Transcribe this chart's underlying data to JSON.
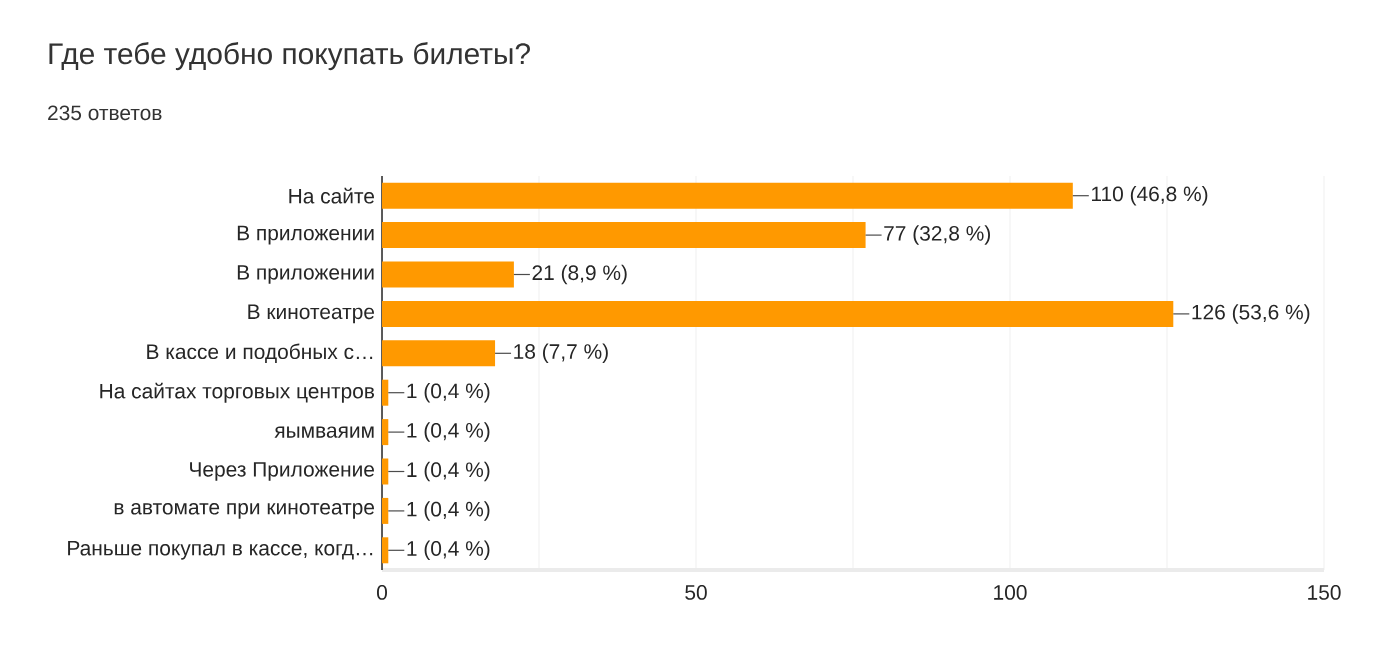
{
  "chart_data": {
    "type": "bar",
    "orientation": "horizontal",
    "title": "Где тебе удобно покупать билеты?",
    "subtitle": "235 ответов",
    "categories": [
      "На сайте",
      "В приложении",
      "В приложении",
      "В кинотеатре",
      "В кассе и подобных с…",
      "На сайтах торговых центров",
      "яымваяим",
      "Через Приложение",
      "в автомате при кинотеатре",
      "Раньше покупал в кассе, когд…"
    ],
    "values": [
      110,
      77,
      21,
      126,
      18,
      1,
      1,
      1,
      1,
      1
    ],
    "value_labels": [
      "110 (46,8 %)",
      "77 (32,8 %)",
      "21 (8,9 %)",
      "126 (53,6 %)",
      "18 (7,7 %)",
      "1 (0,4 %)",
      "1 (0,4 %)",
      "1 (0,4 %)",
      "1 (0,4 %)",
      "1 (0,4 %)"
    ],
    "color": "#ff9900",
    "xlim": [
      0,
      150
    ],
    "xticks": [
      0,
      {
        "value": 25,
        "label": null
      },
      50,
      {
        "value": 75,
        "label": null
      },
      100,
      {
        "value": 125,
        "label": null
      },
      150
    ],
    "grid": "x"
  }
}
